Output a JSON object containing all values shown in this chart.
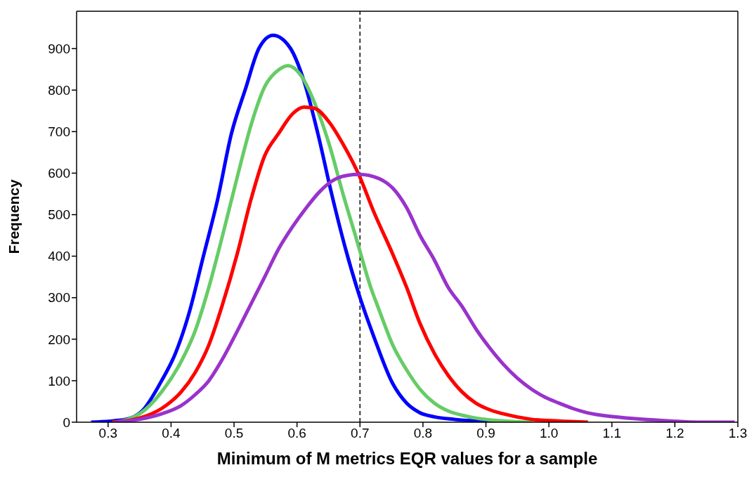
{
  "chart_data": {
    "type": "line",
    "xlabel": "Minimum of M metrics EQR values for a sample",
    "ylabel": "Frequency",
    "xlim": [
      0.25,
      1.3
    ],
    "xticks": [
      0.3,
      0.4,
      0.5,
      0.6,
      0.7,
      0.8,
      0.9,
      {
        "value": 1,
        "label": "1.0"
      },
      1.1,
      1.2,
      1.3
    ],
    "ylim": [
      0,
      990
    ],
    "yticks": [
      0,
      100,
      200,
      300,
      400,
      500,
      600,
      700,
      800,
      900
    ],
    "grid": false,
    "legend": false,
    "marker": "none",
    "line_style": "solid",
    "ref_lines": [
      {
        "axis": "x",
        "value": 0.7,
        "line_style": "dashed",
        "color": "#000000"
      }
    ],
    "series": [
      {
        "color": "#0000ff",
        "x": [
          0.273,
          0.328,
          0.354,
          0.385,
          0.407,
          0.429,
          0.451,
          0.474,
          0.496,
          0.518,
          0.54,
          0.562,
          0.589,
          0.611,
          0.633,
          0.655,
          0.677,
          0.699,
          0.722,
          0.752,
          0.774,
          0.795,
          0.818,
          0.849,
          0.884,
          0.917
        ],
        "values": [
          0,
          7,
          27,
          100,
          166,
          265,
          398,
          537,
          696,
          802,
          902,
          932,
          902,
          822,
          696,
          550,
          418,
          305,
          206,
          93,
          46,
          23,
          13,
          7,
          3,
          0
        ]
      },
      {
        "color": "#66cc66",
        "x": [
          0.31,
          0.35,
          0.385,
          0.416,
          0.438,
          0.46,
          0.482,
          0.505,
          0.527,
          0.549,
          0.571,
          0.586,
          0.606,
          0.628,
          0.651,
          0.673,
          0.695,
          0.717,
          0.73,
          0.752,
          0.774,
          0.795,
          0.818,
          0.84,
          0.862,
          0.884,
          0.928,
          0.974
        ],
        "values": [
          0,
          20,
          73,
          146,
          219,
          325,
          451,
          590,
          716,
          809,
          849,
          859,
          836,
          769,
          670,
          550,
          438,
          325,
          272,
          186,
          126,
          80,
          46,
          27,
          17,
          10,
          3,
          0
        ]
      },
      {
        "color": "#ff0000",
        "x": [
          0.306,
          0.35,
          0.385,
          0.416,
          0.438,
          0.46,
          0.482,
          0.505,
          0.527,
          0.549,
          0.571,
          0.593,
          0.611,
          0.628,
          0.651,
          0.673,
          0.7,
          0.721,
          0.752,
          0.774,
          0.795,
          0.818,
          0.84,
          0.862,
          0.884,
          0.906,
          0.928,
          0.972,
          1.015,
          1.062
        ],
        "values": [
          0,
          10,
          33,
          73,
          119,
          186,
          285,
          405,
          537,
          643,
          696,
          743,
          759,
          756,
          723,
          670,
          590,
          510,
          405,
          325,
          239,
          166,
          113,
          73,
          46,
          30,
          20,
          7,
          3,
          0
        ]
      },
      {
        "color": "#9933cc",
        "x": [
          0.31,
          0.35,
          0.385,
          0.416,
          0.438,
          0.46,
          0.482,
          0.505,
          0.527,
          0.549,
          0.571,
          0.593,
          0.615,
          0.637,
          0.659,
          0.681,
          0.699,
          0.73,
          0.752,
          0.774,
          0.795,
          0.818,
          0.84,
          0.862,
          0.884,
          0.906,
          0.928,
          0.95,
          0.972,
          0.994,
          1.016,
          1.038,
          1.06,
          1.104,
          1.148,
          1.192,
          1.237,
          1.295
        ],
        "values": [
          0,
          7,
          20,
          40,
          66,
          100,
          153,
          219,
          285,
          351,
          418,
          471,
          517,
          557,
          584,
          595,
          597,
          587,
          564,
          517,
          451,
          391,
          325,
          279,
          225,
          179,
          139,
          106,
          80,
          60,
          46,
          33,
          23,
          13,
          7,
          3,
          0,
          0
        ]
      }
    ]
  }
}
